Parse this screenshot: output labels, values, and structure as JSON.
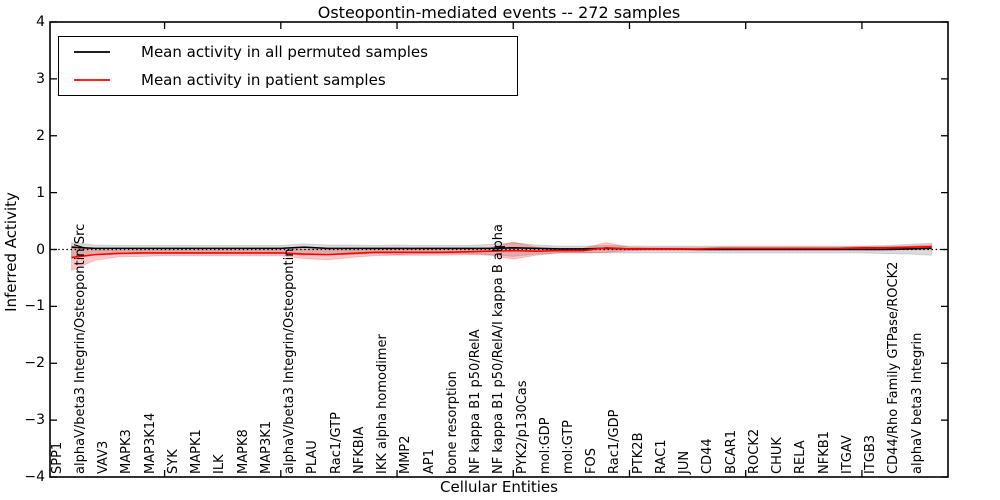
{
  "figure": {
    "title": "Osteopontin-mediated events -- 272 samples",
    "xlabel": "Cellular Entities",
    "ylabel": "Inferred Activity"
  },
  "chart_data": {
    "type": "line",
    "title": "Osteopontin-mediated events -- 272 samples",
    "xlabel": "Cellular Entities",
    "ylabel": "Inferred Activity",
    "ylim": [
      -4,
      4
    ],
    "yticks": [
      4,
      3,
      2,
      1,
      0,
      -1,
      -2,
      -3,
      -4
    ],
    "ytick_labels": [
      "4",
      "3",
      "2",
      "1",
      "0",
      "−1",
      "−2",
      "−3",
      "−4"
    ],
    "xticks": [
      5,
      10,
      15,
      20,
      25,
      30,
      35
    ],
    "grid": false,
    "zero_line": true,
    "legend_position": "upper left",
    "categories": [
      "SPP1",
      "alphaV/beta3 Integrin/Osteopontin/Src",
      "VAV3",
      "MAPK3",
      "MAP3K14",
      "SYK",
      "MAPK1",
      "ILK",
      "MAPK8",
      "MAP3K1",
      "alphaV/beta3 Integrin/Osteopontin",
      "PLAU",
      "Rac1/GTP",
      "NFKBIA",
      "IKK alpha homodimer",
      "MMP2",
      "AP1",
      "bone resorption",
      "NF kappa B1 p50/RelA",
      "NF kappa B1 p50/RelA/I kappa B alpha",
      "PYK2/p130Cas",
      "mol:GDP",
      "mol:GTP",
      "FOS",
      "Rac1/GDP",
      "PTK2B",
      "RAC1",
      "JUN",
      "CD44",
      "BCAR1",
      "ROCK2",
      "CHUK",
      "RELA",
      "NFKB1",
      "ITGAV",
      "ITGB3",
      "CD44/Rho Family GTPase/ROCK2",
      "alphaV beta3 Integrin"
    ],
    "series": [
      {
        "name": "Mean activity in all permuted samples",
        "color": "#000000",
        "band_alpha": 0.14,
        "mean": [
          0.04,
          0.02,
          0.02,
          0.02,
          0.02,
          0.02,
          0.02,
          0.02,
          0.02,
          0.02,
          0.04,
          0.02,
          0.02,
          0.02,
          0.02,
          0.02,
          0.02,
          0.02,
          0.02,
          0.03,
          0.02,
          0.01,
          0.01,
          0.02,
          0.01,
          0.01,
          0.01,
          0.0,
          0.0,
          0.0,
          0.0,
          0.0,
          0.0,
          0.0,
          0.0,
          0.0,
          0.01,
          0.02
        ],
        "upper": [
          0.12,
          0.08,
          0.07,
          0.07,
          0.07,
          0.07,
          0.07,
          0.07,
          0.07,
          0.07,
          0.1,
          0.08,
          0.08,
          0.07,
          0.08,
          0.07,
          0.07,
          0.07,
          0.09,
          0.12,
          0.08,
          0.06,
          0.06,
          0.07,
          0.06,
          0.06,
          0.06,
          0.06,
          0.06,
          0.06,
          0.06,
          0.06,
          0.06,
          0.06,
          0.06,
          0.07,
          0.09,
          0.11
        ],
        "lower": [
          -0.16,
          -0.09,
          -0.08,
          -0.07,
          -0.07,
          -0.07,
          -0.07,
          -0.07,
          -0.07,
          -0.07,
          -0.1,
          -0.09,
          -0.09,
          -0.07,
          -0.09,
          -0.07,
          -0.07,
          -0.07,
          -0.09,
          -0.12,
          -0.08,
          -0.06,
          -0.06,
          -0.06,
          -0.06,
          -0.06,
          -0.06,
          -0.06,
          -0.06,
          -0.06,
          -0.06,
          -0.06,
          -0.06,
          -0.06,
          -0.06,
          -0.07,
          -0.08,
          -0.1
        ]
      },
      {
        "name": "Mean activity in patient samples",
        "color": "#ff0000",
        "band_alpha": 0.22,
        "mean": [
          -0.14,
          -0.09,
          -0.07,
          -0.06,
          -0.06,
          -0.06,
          -0.06,
          -0.06,
          -0.06,
          -0.06,
          -0.08,
          -0.09,
          -0.07,
          -0.05,
          -0.05,
          -0.05,
          -0.05,
          -0.04,
          -0.03,
          -0.02,
          -0.03,
          -0.02,
          -0.02,
          0.03,
          0.01,
          0.01,
          0.01,
          0.01,
          0.02,
          0.02,
          0.02,
          0.02,
          0.02,
          0.02,
          0.03,
          0.03,
          0.04,
          0.05
        ],
        "upper": [
          0.06,
          -0.01,
          -0.02,
          -0.01,
          -0.01,
          -0.01,
          -0.01,
          -0.01,
          -0.01,
          -0.01,
          0.0,
          0.0,
          -0.01,
          0.0,
          0.0,
          0.0,
          0.0,
          0.01,
          0.03,
          0.13,
          0.04,
          0.02,
          0.02,
          0.12,
          0.04,
          0.03,
          0.03,
          0.03,
          0.04,
          0.04,
          0.04,
          0.04,
          0.04,
          0.04,
          0.05,
          0.05,
          0.06,
          0.08
        ],
        "lower": [
          -0.37,
          -0.19,
          -0.13,
          -0.12,
          -0.11,
          -0.11,
          -0.11,
          -0.11,
          -0.11,
          -0.11,
          -0.16,
          -0.18,
          -0.14,
          -0.11,
          -0.1,
          -0.1,
          -0.1,
          -0.09,
          -0.1,
          -0.17,
          -0.1,
          -0.06,
          -0.06,
          -0.05,
          -0.02,
          -0.01,
          -0.01,
          -0.01,
          0.0,
          0.0,
          0.0,
          0.0,
          0.0,
          0.0,
          0.01,
          0.01,
          0.02,
          0.03
        ]
      }
    ]
  },
  "legend": {
    "items": [
      {
        "label": "Mean activity in all permuted samples",
        "color": "#000000"
      },
      {
        "label": "Mean activity in patient samples",
        "color": "#ff0000"
      }
    ]
  }
}
